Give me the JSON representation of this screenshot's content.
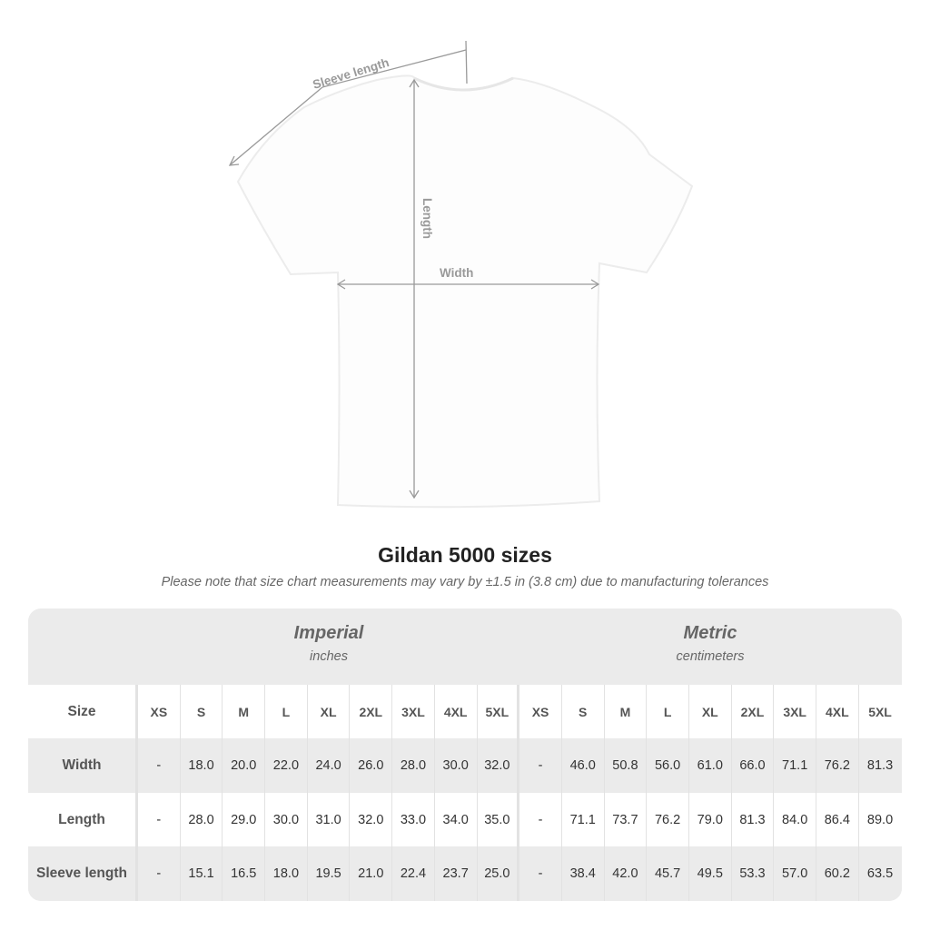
{
  "diagram": {
    "sleeve_label": "Sleeve length",
    "length_label": "Length",
    "width_label": "Width"
  },
  "title": "Gildan 5000 sizes",
  "note": "Please note that size chart measurements may vary by ±1.5 in (3.8 cm) due to manufacturing tolerances",
  "groups": {
    "imperial": {
      "title": "Imperial",
      "unit": "inches"
    },
    "metric": {
      "title": "Metric",
      "unit": "centimeters"
    }
  },
  "size_header": "Size",
  "sizes": [
    "XS",
    "S",
    "M",
    "L",
    "XL",
    "2XL",
    "3XL",
    "4XL",
    "5XL"
  ],
  "rows": [
    {
      "label": "Width",
      "imperial": [
        "-",
        "18.0",
        "20.0",
        "22.0",
        "24.0",
        "26.0",
        "28.0",
        "30.0",
        "32.0"
      ],
      "metric": [
        "-",
        "46.0",
        "50.8",
        "56.0",
        "61.0",
        "66.0",
        "71.1",
        "76.2",
        "81.3"
      ]
    },
    {
      "label": "Length",
      "imperial": [
        "-",
        "28.0",
        "29.0",
        "30.0",
        "31.0",
        "32.0",
        "33.0",
        "34.0",
        "35.0"
      ],
      "metric": [
        "-",
        "71.1",
        "73.7",
        "76.2",
        "79.0",
        "81.3",
        "84.0",
        "86.4",
        "89.0"
      ]
    },
    {
      "label": "Sleeve length",
      "imperial": [
        "-",
        "15.1",
        "16.5",
        "18.0",
        "19.5",
        "21.0",
        "22.4",
        "23.7",
        "25.0"
      ],
      "metric": [
        "-",
        "38.4",
        "42.0",
        "45.7",
        "49.5",
        "53.3",
        "57.0",
        "60.2",
        "63.5"
      ]
    }
  ]
}
